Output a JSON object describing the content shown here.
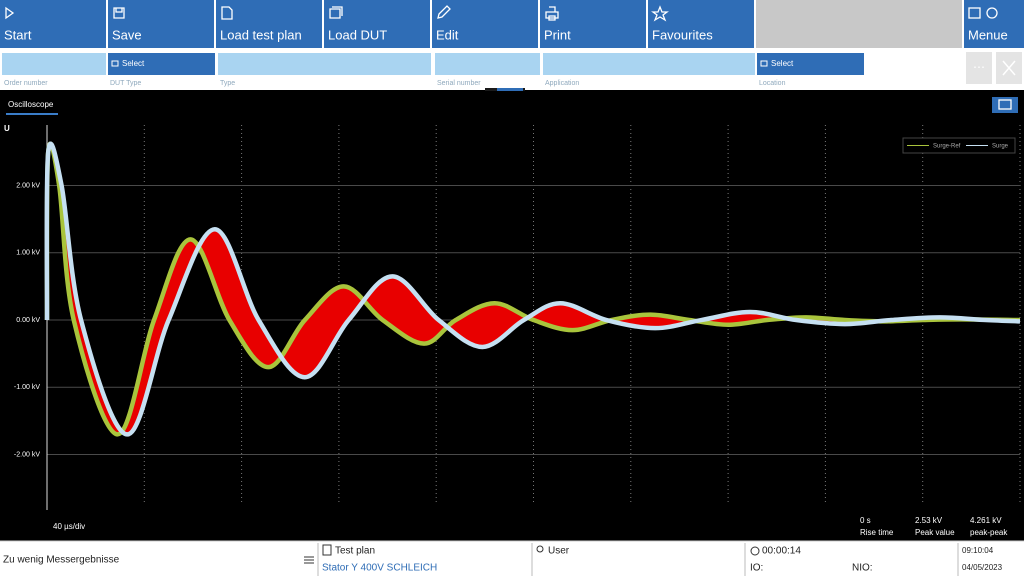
{
  "toolbar": {
    "buttons": [
      "Start",
      "Save",
      "Load test plan",
      "Load DUT",
      "Edit",
      "Print",
      "Favourites"
    ],
    "menu": "Menue"
  },
  "fields": [
    {
      "label": "Order number"
    },
    {
      "label": "DUT Type",
      "button": "Select"
    },
    {
      "label": "Type"
    },
    {
      "label": "Serial number"
    },
    {
      "label": "Application"
    },
    {
      "label": "Location",
      "button": "Select"
    }
  ],
  "tab": "Oscilloscope",
  "chart_data": {
    "type": "line",
    "y_label": "U",
    "x_label": "40 µs/div",
    "xlim": [
      0,
      400
    ],
    "xticks": [
      0,
      40,
      80,
      120,
      160,
      200,
      240,
      280,
      320,
      360,
      400
    ],
    "ylim": [
      -2.75,
      2.9
    ],
    "yticks": [
      {
        "value": -2,
        "label": "-2.00 kV"
      },
      {
        "value": -1,
        "label": "-1.00 kV"
      },
      {
        "value": 0,
        "label": "0.00 kV"
      },
      {
        "value": 1,
        "label": "1.00 kV"
      },
      {
        "value": 2,
        "label": "2.00 kV"
      }
    ],
    "grid": true,
    "legend": "top-right",
    "difference_color": "#e80000",
    "series": [
      {
        "name": "Surge-Ref",
        "color": "#a9c43c",
        "x": [
          0,
          0.5,
          5,
          11,
          29,
          44,
          59,
          75,
          91,
          106,
          122,
          138,
          155,
          168,
          184,
          200,
          216,
          232,
          248,
          264,
          280,
          296,
          312,
          328,
          344,
          360,
          376,
          400
        ],
        "values": [
          0,
          2.5,
          2.0,
          0,
          -1.7,
          0,
          1.2,
          0,
          -0.7,
          0,
          0.5,
          0,
          -0.35,
          0,
          0.25,
          0,
          -0.15,
          0,
          0.08,
          0,
          -0.07,
          0,
          0.04,
          0,
          -0.02,
          0,
          0.01,
          0
        ]
      },
      {
        "name": "Surge",
        "color": "#c6e0f2",
        "x": [
          0,
          0.5,
          6,
          14,
          33,
          50,
          69,
          87,
          106,
          124,
          142,
          161,
          179,
          196,
          211,
          230,
          250,
          269,
          289,
          308,
          328,
          347,
          367,
          386,
          400
        ],
        "values": [
          0,
          2.5,
          2.0,
          0,
          -1.7,
          0,
          1.35,
          0,
          -0.85,
          0,
          0.65,
          0,
          -0.4,
          0,
          0.25,
          0,
          -0.12,
          0,
          0.12,
          0,
          -0.06,
          0,
          0.04,
          0,
          -0.02
        ]
      }
    ]
  },
  "measurements": [
    {
      "value": "0 s",
      "label": "Rise time"
    },
    {
      "value": "2.53 kV",
      "label": "Peak value"
    },
    {
      "value": "4.261 kV",
      "label": "peak-peak"
    }
  ],
  "status": {
    "message": "Zu wenig Messergebnisse",
    "test_plan_label": "Test plan",
    "test_plan": "Stator Y 400V SCHLEICH",
    "user_label": "User",
    "timer": "00:00:14",
    "io": "IO:",
    "nio": "NIO:",
    "time": "09:10:04",
    "date": "04/05/2023"
  }
}
